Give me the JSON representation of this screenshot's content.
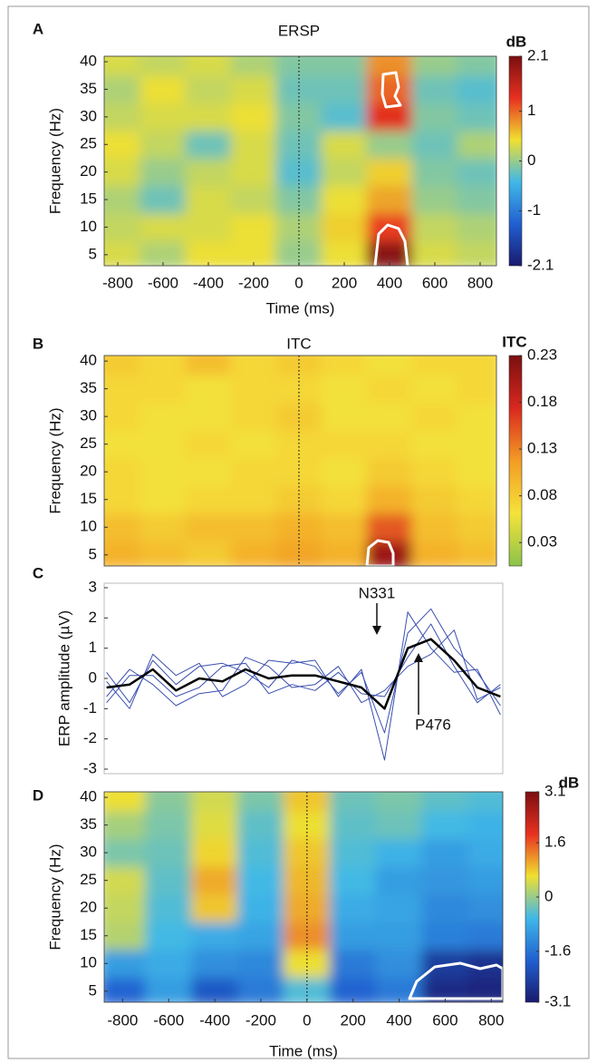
{
  "chart_data": [
    {
      "type": "heatmap",
      "panel_label": "A",
      "title": "ERSP",
      "colorbar_label": "dB",
      "x_label": "Time (ms)",
      "y_label": "Frequency (Hz)",
      "x": [
        -800,
        -600,
        -400,
        -200,
        0,
        200,
        400,
        600,
        800
      ],
      "y": [
        5,
        10,
        15,
        20,
        25,
        30,
        35,
        40
      ],
      "z": [
        [
          0.3,
          0.1,
          0.4,
          0.4,
          0.0,
          0.4,
          2.0,
          0.3,
          0.2
        ],
        [
          0.2,
          0.3,
          0.3,
          0.4,
          0.1,
          0.5,
          1.2,
          0.2,
          0.1
        ],
        [
          0.1,
          -0.2,
          0.3,
          0.2,
          -0.1,
          0.4,
          0.7,
          0.0,
          -0.1
        ],
        [
          0.3,
          0.0,
          0.2,
          0.3,
          -0.3,
          0.2,
          0.5,
          -0.1,
          -0.2
        ],
        [
          0.4,
          0.2,
          -0.2,
          0.3,
          -0.2,
          0.3,
          0.0,
          -0.2,
          0.1
        ],
        [
          0.2,
          0.3,
          0.3,
          0.4,
          -0.1,
          -0.3,
          1.3,
          -0.1,
          -0.2
        ],
        [
          0.1,
          0.4,
          0.2,
          0.3,
          -0.2,
          -0.2,
          1.0,
          -0.2,
          -0.3
        ],
        [
          0.3,
          0.2,
          0.3,
          0.1,
          -0.1,
          -0.1,
          0.8,
          0.0,
          -0.1
        ]
      ],
      "xlim": [
        -860,
        872
      ],
      "xticks": [
        -800,
        -600,
        -400,
        -200,
        0,
        200,
        400,
        600,
        800
      ],
      "ylim": [
        3,
        41
      ],
      "yticks": [
        5,
        10,
        15,
        20,
        25,
        30,
        35,
        40
      ],
      "zlim": [
        -2.1,
        2.1
      ],
      "zticks": [
        -2.1,
        -1,
        0,
        1,
        2.1
      ],
      "vline": 0,
      "colormap": [
        "#1a1a6e",
        "#2060d0",
        "#40b8e8",
        "#f0e030",
        "#e83020",
        "#7a0f10"
      ]
    },
    {
      "type": "heatmap",
      "panel_label": "B",
      "title": "ITC",
      "colorbar_label": "ITC",
      "y_label": "Frequency (Hz)",
      "x": [
        -800,
        -600,
        -400,
        -200,
        0,
        200,
        400,
        600,
        800
      ],
      "y": [
        5,
        10,
        15,
        20,
        25,
        30,
        35,
        40
      ],
      "z": [
        [
          0.1,
          0.09,
          0.08,
          0.1,
          0.11,
          0.1,
          0.21,
          0.1,
          0.09
        ],
        [
          0.09,
          0.08,
          0.09,
          0.09,
          0.1,
          0.09,
          0.15,
          0.09,
          0.08
        ],
        [
          0.07,
          0.06,
          0.07,
          0.07,
          0.08,
          0.07,
          0.1,
          0.08,
          0.07
        ],
        [
          0.07,
          0.06,
          0.06,
          0.07,
          0.07,
          0.06,
          0.08,
          0.07,
          0.06
        ],
        [
          0.06,
          0.06,
          0.07,
          0.06,
          0.07,
          0.07,
          0.07,
          0.06,
          0.06
        ],
        [
          0.07,
          0.06,
          0.06,
          0.07,
          0.08,
          0.06,
          0.06,
          0.07,
          0.06
        ],
        [
          0.07,
          0.07,
          0.06,
          0.07,
          0.07,
          0.06,
          0.07,
          0.06,
          0.07
        ],
        [
          0.08,
          0.07,
          0.09,
          0.07,
          0.08,
          0.07,
          0.06,
          0.07,
          0.07
        ]
      ],
      "xlim": [
        -860,
        872
      ],
      "ylim": [
        3,
        41
      ],
      "yticks": [
        5,
        10,
        15,
        20,
        25,
        30,
        35,
        40
      ],
      "zlim": [
        0.005,
        0.23
      ],
      "zticks": [
        0.03,
        0.08,
        0.13,
        0.18,
        0.23
      ],
      "vline": 0,
      "colormap": [
        "#8bc34a",
        "#f5e23a",
        "#f39c24",
        "#d9281e",
        "#7a0f10"
      ]
    },
    {
      "type": "line",
      "panel_label": "C",
      "y_label": "ERP amplitude (µV)",
      "x": [
        -850,
        -750,
        -650,
        -550,
        -450,
        -350,
        -250,
        -150,
        -50,
        50,
        150,
        250,
        350,
        450,
        550,
        650,
        750,
        850
      ],
      "series": [
        {
          "color": "#3b4fb0",
          "width": 1,
          "values": [
            0.2,
            -0.8,
            0.6,
            -0.2,
            0.4,
            0.5,
            0.2,
            -0.3,
            0.6,
            0.4,
            -0.5,
            0.2,
            -1.8,
            1.5,
            2.3,
            1.0,
            0.2,
            -0.9
          ]
        },
        {
          "color": "#3b4fb0",
          "width": 1,
          "values": [
            -0.6,
            0.3,
            -0.2,
            -0.9,
            -0.5,
            -0.4,
            0.7,
            0.4,
            -0.3,
            -0.2,
            0.4,
            -0.8,
            -0.4,
            0.4,
            0.8,
            1.6,
            -0.7,
            -0.3
          ]
        },
        {
          "color": "#3b4fb0",
          "width": 1,
          "values": [
            -0.1,
            -1.0,
            0.8,
            0.1,
            0.5,
            -0.6,
            -0.2,
            0.6,
            0.5,
            0.6,
            -0.6,
            0.3,
            -2.7,
            2.2,
            1.0,
            0.2,
            0.3,
            -1.2
          ]
        },
        {
          "color": "#3b4fb0",
          "width": 1,
          "values": [
            -0.8,
            0.1,
            0.1,
            -0.6,
            -0.3,
            0.4,
            0.5,
            -0.5,
            -0.2,
            -0.4,
            0.2,
            -0.5,
            -0.6,
            0.7,
            1.8,
            0.4,
            -0.8,
            -0.2
          ]
        },
        {
          "color": "#000000",
          "width": 2.5,
          "values": [
            -0.3,
            -0.2,
            0.3,
            -0.4,
            0.0,
            -0.1,
            0.3,
            0.0,
            0.1,
            0.1,
            -0.1,
            -0.3,
            -1.0,
            1.0,
            1.3,
            0.6,
            -0.3,
            -0.6
          ]
        }
      ],
      "annotations": [
        "N331",
        "P476"
      ],
      "xlim": [
        -860,
        860
      ],
      "ylim": [
        -3.15,
        3.15
      ],
      "yticks": [
        -3,
        -2,
        -1,
        0,
        1,
        2,
        3
      ]
    },
    {
      "type": "heatmap",
      "panel_label": "D",
      "colorbar_label": "dB",
      "x_label": "Time (ms)",
      "y_label": "Frequency (Hz)",
      "x": [
        -800,
        -600,
        -400,
        -200,
        0,
        200,
        400,
        600,
        800
      ],
      "y": [
        5,
        10,
        15,
        20,
        25,
        30,
        35,
        40
      ],
      "z": [
        [
          -1.8,
          -1.0,
          -2.0,
          -1.5,
          -0.5,
          -1.8,
          -1.5,
          -2.8,
          -2.9
        ],
        [
          -1.0,
          -0.8,
          -1.2,
          -1.3,
          0.6,
          -1.5,
          -1.2,
          -2.5,
          -2.7
        ],
        [
          0.2,
          -0.6,
          -0.8,
          -0.9,
          1.2,
          -1.0,
          -1.0,
          -1.4,
          -1.5
        ],
        [
          0.3,
          -0.5,
          0.8,
          -0.7,
          1.0,
          -0.8,
          -0.9,
          -1.3,
          -1.2
        ],
        [
          0.4,
          -0.4,
          1.0,
          -0.6,
          0.9,
          -0.6,
          -1.0,
          -1.1,
          -1.0
        ],
        [
          -0.2,
          -0.3,
          0.7,
          -0.5,
          0.8,
          -0.5,
          -0.7,
          -1.0,
          -0.8
        ],
        [
          0.1,
          -0.2,
          0.5,
          -0.4,
          0.6,
          -0.4,
          -0.3,
          -0.6,
          -0.7
        ],
        [
          0.6,
          -0.1,
          0.4,
          -0.2,
          0.8,
          -0.3,
          -0.2,
          -0.4,
          -0.5
        ]
      ],
      "xlim": [
        -880,
        850
      ],
      "xticks": [
        -800,
        -600,
        -400,
        -200,
        0,
        200,
        400,
        600,
        800
      ],
      "ylim": [
        3,
        41
      ],
      "yticks": [
        5,
        10,
        15,
        20,
        25,
        30,
        35,
        40
      ],
      "zlim": [
        -3.1,
        3.1
      ],
      "zticks": [
        -3.1,
        -1.6,
        0,
        1.6,
        3.1
      ],
      "vline": 0,
      "colormap": [
        "#1a1a6e",
        "#2060d0",
        "#40b8e8",
        "#f0e030",
        "#e83020",
        "#7a0f10"
      ]
    }
  ]
}
